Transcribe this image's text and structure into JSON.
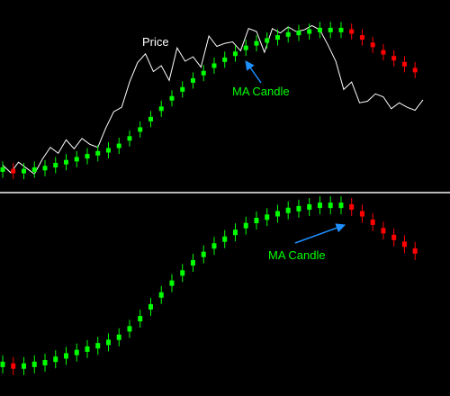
{
  "colors": {
    "background": "#000000",
    "separator": "#b8b8b8",
    "price_line": "#ffffff",
    "rising_candle": "#00ff00",
    "falling_candle": "#ff0000",
    "arrow": "#1e90ff",
    "label_price": "#ffffff",
    "label_ma": "#00ff00"
  },
  "chart_data": [
    {
      "type": "line",
      "panel": "upper",
      "title": "",
      "xlabel": "",
      "ylabel": "",
      "grid": false,
      "ylim": [
        0,
        100
      ],
      "annotations": [
        {
          "text": "Price",
          "target": "price line"
        },
        {
          "text": "MA Candle",
          "target": "MA candle series",
          "arrow": true
        }
      ],
      "series": [
        {
          "name": "Price",
          "style": "line",
          "x": [
            0,
            3,
            6,
            9,
            12,
            15,
            18,
            21,
            24,
            27,
            30,
            33,
            36,
            39,
            42,
            45,
            48,
            51,
            54,
            57,
            60,
            63,
            66,
            69,
            72,
            75,
            78,
            81,
            84,
            87,
            90,
            93,
            96,
            99,
            102,
            105,
            108,
            111,
            114,
            117,
            120,
            123,
            126,
            129,
            132,
            135,
            138,
            141,
            144,
            147,
            150,
            153,
            156,
            159
          ],
          "values": [
            10,
            5,
            12,
            8,
            4,
            14,
            22,
            18,
            27,
            21,
            28,
            24,
            22,
            35,
            46,
            49,
            66,
            79,
            85,
            73,
            77,
            67,
            89,
            80,
            83,
            76,
            97,
            90,
            92,
            93,
            87,
            102,
            100,
            86,
            102,
            99,
            103,
            100,
            101,
            104,
            101,
            91,
            80,
            61,
            66,
            52,
            53,
            58,
            56,
            48,
            52,
            49,
            47,
            54
          ]
        },
        {
          "name": "MA Candle",
          "style": "candles",
          "x": [
            0,
            4,
            8,
            12,
            16,
            20,
            24,
            28,
            32,
            36,
            40,
            44,
            48,
            52,
            56,
            60,
            64,
            68,
            72,
            76,
            80,
            84,
            88,
            92,
            96,
            100,
            104,
            108,
            112,
            116,
            120,
            124,
            128,
            132,
            136,
            140,
            144,
            148,
            152,
            156
          ],
          "values": [
            7,
            6,
            6,
            7,
            8,
            10,
            12,
            14,
            16,
            18,
            20,
            23,
            28,
            34,
            41,
            48,
            55,
            61,
            67,
            72,
            77,
            81,
            85,
            89,
            92,
            94,
            96,
            98,
            99,
            100,
            101,
            101,
            101,
            100,
            96,
            91,
            86,
            82,
            78,
            74
          ],
          "rising_color": "#00ff00",
          "falling_color": "#ff0000"
        }
      ]
    },
    {
      "type": "bar",
      "panel": "lower",
      "title": "",
      "xlabel": "",
      "ylabel": "",
      "grid": false,
      "ylim": [
        0,
        100
      ],
      "annotations": [
        {
          "text": "MA Candle",
          "target": "MA candle series",
          "arrow": true
        }
      ],
      "series": [
        {
          "name": "MA Candle",
          "style": "candles",
          "x": [
            0,
            4,
            8,
            12,
            16,
            20,
            24,
            28,
            32,
            36,
            40,
            44,
            48,
            52,
            56,
            60,
            64,
            68,
            72,
            76,
            80,
            84,
            88,
            92,
            96,
            100,
            104,
            108,
            112,
            116,
            120,
            124,
            128,
            132,
            136,
            140,
            144,
            148,
            152,
            156
          ],
          "values": [
            7,
            6,
            6,
            7,
            8,
            10,
            12,
            14,
            16,
            18,
            20,
            23,
            28,
            34,
            41,
            48,
            55,
            61,
            67,
            72,
            77,
            81,
            85,
            89,
            92,
            94,
            96,
            98,
            99,
            100,
            101,
            101,
            101,
            100,
            96,
            91,
            86,
            82,
            78,
            74
          ],
          "rising_color": "#00ff00",
          "falling_color": "#ff0000"
        }
      ]
    }
  ]
}
